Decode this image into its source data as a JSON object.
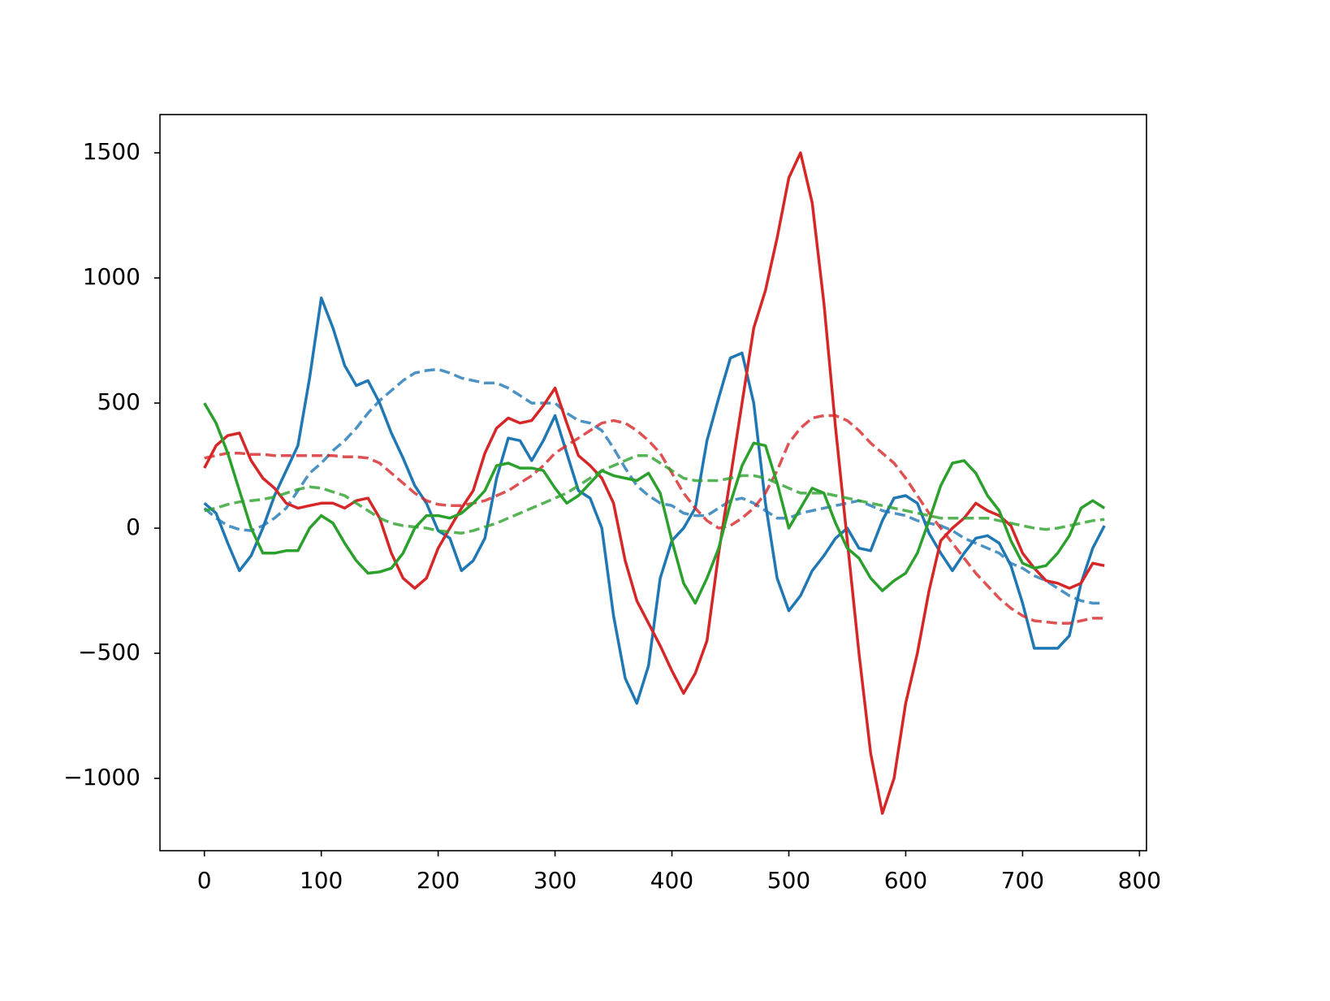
{
  "chart_data": {
    "type": "line",
    "x": [
      0,
      10,
      20,
      30,
      40,
      50,
      60,
      70,
      80,
      90,
      100,
      110,
      120,
      130,
      140,
      150,
      160,
      170,
      180,
      190,
      200,
      210,
      220,
      230,
      240,
      250,
      260,
      270,
      280,
      290,
      300,
      310,
      320,
      330,
      340,
      350,
      360,
      370,
      380,
      390,
      400,
      410,
      420,
      430,
      440,
      450,
      460,
      470,
      480,
      490,
      500,
      510,
      520,
      530,
      540,
      550,
      560,
      570,
      580,
      590,
      600,
      610,
      620,
      630,
      640,
      650,
      660,
      670,
      680,
      690,
      700,
      710,
      720,
      730,
      740,
      750,
      760,
      770
    ],
    "series": [
      {
        "color": "#1f77b4",
        "linestyle": "solid",
        "values": [
          100,
          60,
          -60,
          -170,
          -110,
          0,
          130,
          230,
          330,
          600,
          920,
          800,
          650,
          570,
          590,
          500,
          380,
          280,
          170,
          100,
          -10,
          -40,
          -170,
          -130,
          -40,
          200,
          360,
          350,
          270,
          350,
          450,
          300,
          150,
          120,
          0,
          -350,
          -600,
          -700,
          -550,
          -200,
          -50,
          0,
          80,
          350,
          520,
          680,
          700,
          500,
          100,
          -200,
          -330,
          -270,
          -170,
          -110,
          -40,
          0,
          -80,
          -90,
          30,
          120,
          130,
          100,
          -20,
          -100,
          -170,
          -100,
          -40,
          -30,
          -60,
          -150,
          -300,
          -480,
          -480,
          -480,
          -430,
          -220,
          -80,
          10
        ]
      },
      {
        "color": "#1f77b4",
        "linestyle": "dashed",
        "values": [
          80,
          40,
          10,
          -5,
          -10,
          10,
          40,
          80,
          150,
          220,
          260,
          310,
          350,
          400,
          460,
          510,
          550,
          590,
          620,
          630,
          635,
          620,
          600,
          590,
          580,
          580,
          560,
          530,
          500,
          500,
          500,
          460,
          430,
          420,
          390,
          320,
          240,
          170,
          130,
          100,
          90,
          60,
          50,
          50,
          80,
          110,
          120,
          100,
          70,
          40,
          40,
          60,
          70,
          80,
          90,
          100,
          110,
          90,
          70,
          60,
          50,
          30,
          20,
          10,
          -10,
          -40,
          -60,
          -80,
          -100,
          -140,
          -160,
          -190,
          -210,
          -240,
          -270,
          -290,
          -300,
          -300
        ]
      },
      {
        "color": "#d62728",
        "linestyle": "solid",
        "values": [
          240,
          330,
          370,
          380,
          270,
          200,
          160,
          100,
          80,
          90,
          100,
          100,
          80,
          110,
          120,
          40,
          -100,
          -200,
          -240,
          -200,
          -80,
          0,
          80,
          150,
          300,
          400,
          440,
          420,
          430,
          490,
          560,
          420,
          290,
          250,
          200,
          100,
          -130,
          -290,
          -380,
          -470,
          -570,
          -660,
          -580,
          -450,
          -100,
          200,
          500,
          800,
          950,
          1160,
          1400,
          1500,
          1300,
          900,
          400,
          -50,
          -500,
          -900,
          -1140,
          -1000,
          -700,
          -500,
          -250,
          -50,
          0,
          40,
          100,
          70,
          50,
          10,
          -100,
          -160,
          -210,
          -220,
          -240,
          -220,
          -140,
          -150
        ]
      },
      {
        "color": "#d62728",
        "linestyle": "dashed",
        "values": [
          280,
          290,
          300,
          300,
          295,
          295,
          290,
          290,
          290,
          290,
          290,
          290,
          285,
          285,
          280,
          260,
          220,
          180,
          140,
          110,
          95,
          90,
          90,
          100,
          110,
          130,
          150,
          180,
          210,
          250,
          300,
          330,
          360,
          390,
          420,
          430,
          420,
          390,
          350,
          300,
          220,
          140,
          80,
          30,
          0,
          10,
          40,
          80,
          140,
          230,
          340,
          400,
          440,
          450,
          450,
          430,
          390,
          340,
          300,
          260,
          200,
          130,
          60,
          0,
          -60,
          -120,
          -180,
          -230,
          -280,
          -320,
          -350,
          -370,
          -375,
          -380,
          -380,
          -370,
          -360,
          -360
        ]
      },
      {
        "color": "#2ca02c",
        "linestyle": "solid",
        "values": [
          500,
          420,
          300,
          150,
          0,
          -100,
          -100,
          -90,
          -90,
          0,
          50,
          20,
          -60,
          -130,
          -180,
          -175,
          -160,
          -100,
          0,
          50,
          50,
          40,
          60,
          100,
          150,
          250,
          260,
          240,
          240,
          230,
          160,
          100,
          130,
          180,
          230,
          210,
          200,
          190,
          220,
          140,
          -50,
          -220,
          -300,
          -200,
          -80,
          100,
          250,
          340,
          330,
          180,
          0,
          80,
          160,
          140,
          20,
          -80,
          -120,
          -200,
          -250,
          -210,
          -180,
          -100,
          30,
          170,
          260,
          270,
          220,
          130,
          70,
          -50,
          -140,
          -160,
          -150,
          -100,
          -30,
          80,
          110,
          80
        ]
      },
      {
        "color": "#2ca02c",
        "linestyle": "dashed",
        "values": [
          70,
          80,
          95,
          105,
          110,
          115,
          125,
          140,
          155,
          165,
          160,
          145,
          130,
          100,
          70,
          40,
          20,
          10,
          5,
          0,
          -10,
          -15,
          -20,
          -10,
          5,
          20,
          40,
          60,
          80,
          100,
          120,
          140,
          170,
          200,
          230,
          250,
          270,
          290,
          290,
          260,
          230,
          200,
          190,
          190,
          190,
          200,
          210,
          210,
          200,
          180,
          160,
          140,
          140,
          140,
          130,
          120,
          110,
          100,
          90,
          80,
          70,
          60,
          50,
          40,
          40,
          40,
          40,
          40,
          30,
          20,
          10,
          0,
          -5,
          0,
          10,
          20,
          30,
          35
        ]
      }
    ],
    "xlim": [
      -38,
      806
    ],
    "ylim": [
      -1289,
      1653
    ],
    "xticks": [
      0,
      100,
      200,
      300,
      400,
      500,
      600,
      700,
      800
    ],
    "yticks": [
      {
        "value": -1000,
        "label": "−1000"
      },
      {
        "value": -500,
        "label": "−500"
      },
      0,
      500,
      1000,
      1500
    ]
  }
}
